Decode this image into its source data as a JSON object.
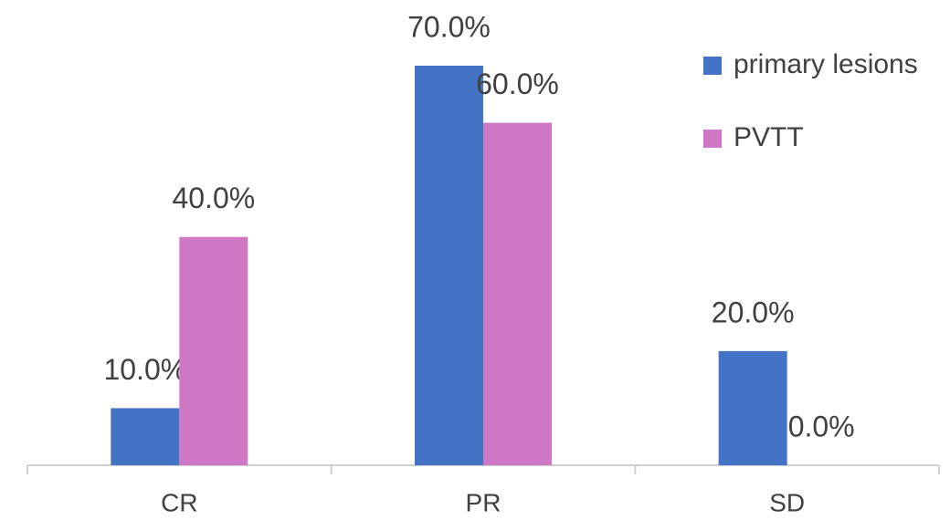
{
  "chart_data": {
    "type": "bar",
    "categories": [
      "CR",
      "PR",
      "SD"
    ],
    "series": [
      {
        "name": "primary lesions",
        "color": "#4472c4",
        "values": [
          10,
          70,
          20
        ],
        "value_labels": [
          "10.0%",
          "70.0%",
          "20.0%"
        ]
      },
      {
        "name": "PVTT",
        "color": "#cf78c6",
        "values": [
          40,
          60,
          0
        ],
        "value_labels": [
          "40.0%",
          "60.0%",
          "0.0%"
        ]
      }
    ],
    "ylim": [
      0,
      70
    ],
    "legend": "top-right"
  }
}
